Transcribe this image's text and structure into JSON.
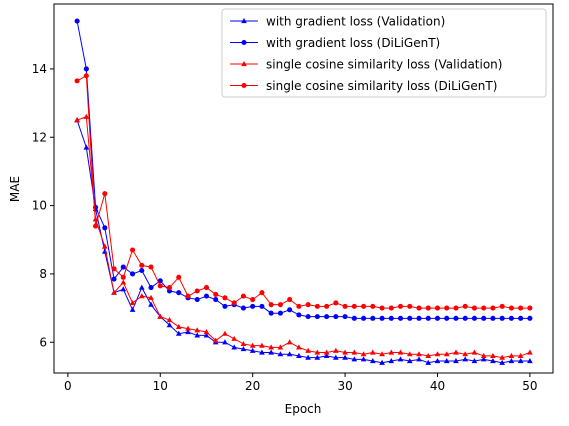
{
  "chart_data": {
    "type": "line",
    "title": "",
    "xlabel": "Epoch",
    "ylabel": "MAE",
    "xlim": [
      -1.5,
      52.5
    ],
    "ylim": [
      5.1,
      15.9
    ],
    "xticks": [
      0,
      10,
      20,
      30,
      40,
      50
    ],
    "yticks": [
      6,
      8,
      10,
      12,
      14
    ],
    "grid": false,
    "legend_position": "top-right",
    "x": [
      1,
      2,
      3,
      4,
      5,
      6,
      7,
      8,
      9,
      10,
      11,
      12,
      13,
      14,
      15,
      16,
      17,
      18,
      19,
      20,
      21,
      22,
      23,
      24,
      25,
      26,
      27,
      28,
      29,
      30,
      31,
      32,
      33,
      34,
      35,
      36,
      37,
      38,
      39,
      40,
      41,
      42,
      43,
      44,
      45,
      46,
      47,
      48,
      49,
      50
    ],
    "series": [
      {
        "name": "with gradient loss (Validation)",
        "color": "#0000ff",
        "marker": "triangle",
        "values": [
          12.5,
          11.7,
          9.9,
          8.65,
          7.45,
          7.55,
          6.95,
          7.6,
          7.1,
          6.75,
          6.5,
          6.25,
          6.3,
          6.2,
          6.2,
          6.0,
          6.0,
          5.85,
          5.8,
          5.75,
          5.7,
          5.7,
          5.65,
          5.65,
          5.6,
          5.55,
          5.55,
          5.6,
          5.55,
          5.55,
          5.5,
          5.5,
          5.45,
          5.4,
          5.45,
          5.5,
          5.45,
          5.5,
          5.4,
          5.45,
          5.45,
          5.45,
          5.5,
          5.45,
          5.5,
          5.45,
          5.4,
          5.45,
          5.45,
          5.45
        ]
      },
      {
        "name": "with gradient loss (DiLiGenT)",
        "color": "#0000ff",
        "marker": "circle",
        "values": [
          15.4,
          14.0,
          9.95,
          9.35,
          7.85,
          8.2,
          8.0,
          8.1,
          7.6,
          7.8,
          7.5,
          7.45,
          7.3,
          7.25,
          7.35,
          7.25,
          7.05,
          7.1,
          7.0,
          7.05,
          7.05,
          6.85,
          6.85,
          6.95,
          6.8,
          6.75,
          6.75,
          6.75,
          6.75,
          6.75,
          6.7,
          6.7,
          6.7,
          6.7,
          6.7,
          6.7,
          6.7,
          6.7,
          6.7,
          6.7,
          6.7,
          6.7,
          6.7,
          6.7,
          6.7,
          6.7,
          6.7,
          6.7,
          6.7,
          6.7
        ]
      },
      {
        "name": "single cosine similarity loss (Validation)",
        "color": "#ff0000",
        "marker": "triangle",
        "values": [
          12.5,
          12.6,
          9.6,
          8.8,
          7.45,
          7.75,
          7.15,
          7.35,
          7.3,
          6.75,
          6.65,
          6.45,
          6.4,
          6.35,
          6.3,
          6.05,
          6.25,
          6.1,
          5.95,
          5.9,
          5.9,
          5.85,
          5.85,
          6.0,
          5.85,
          5.75,
          5.7,
          5.7,
          5.75,
          5.7,
          5.7,
          5.65,
          5.7,
          5.65,
          5.7,
          5.7,
          5.65,
          5.65,
          5.6,
          5.65,
          5.65,
          5.7,
          5.65,
          5.7,
          5.6,
          5.6,
          5.55,
          5.6,
          5.6,
          5.7
        ]
      },
      {
        "name": "single cosine similarity loss (DiLiGenT)",
        "color": "#ff0000",
        "marker": "circle",
        "values": [
          13.65,
          13.8,
          9.4,
          10.35,
          8.15,
          7.9,
          8.7,
          8.25,
          8.2,
          7.65,
          7.6,
          7.9,
          7.35,
          7.5,
          7.6,
          7.4,
          7.3,
          7.15,
          7.35,
          7.25,
          7.45,
          7.1,
          7.1,
          7.25,
          7.05,
          7.1,
          7.05,
          7.05,
          7.15,
          7.05,
          7.05,
          7.05,
          7.05,
          7.0,
          7.0,
          7.05,
          7.05,
          7.0,
          7.0,
          7.0,
          7.0,
          7.0,
          7.05,
          7.0,
          7.0,
          7.0,
          7.05,
          7.0,
          7.0,
          7.0
        ]
      }
    ]
  }
}
